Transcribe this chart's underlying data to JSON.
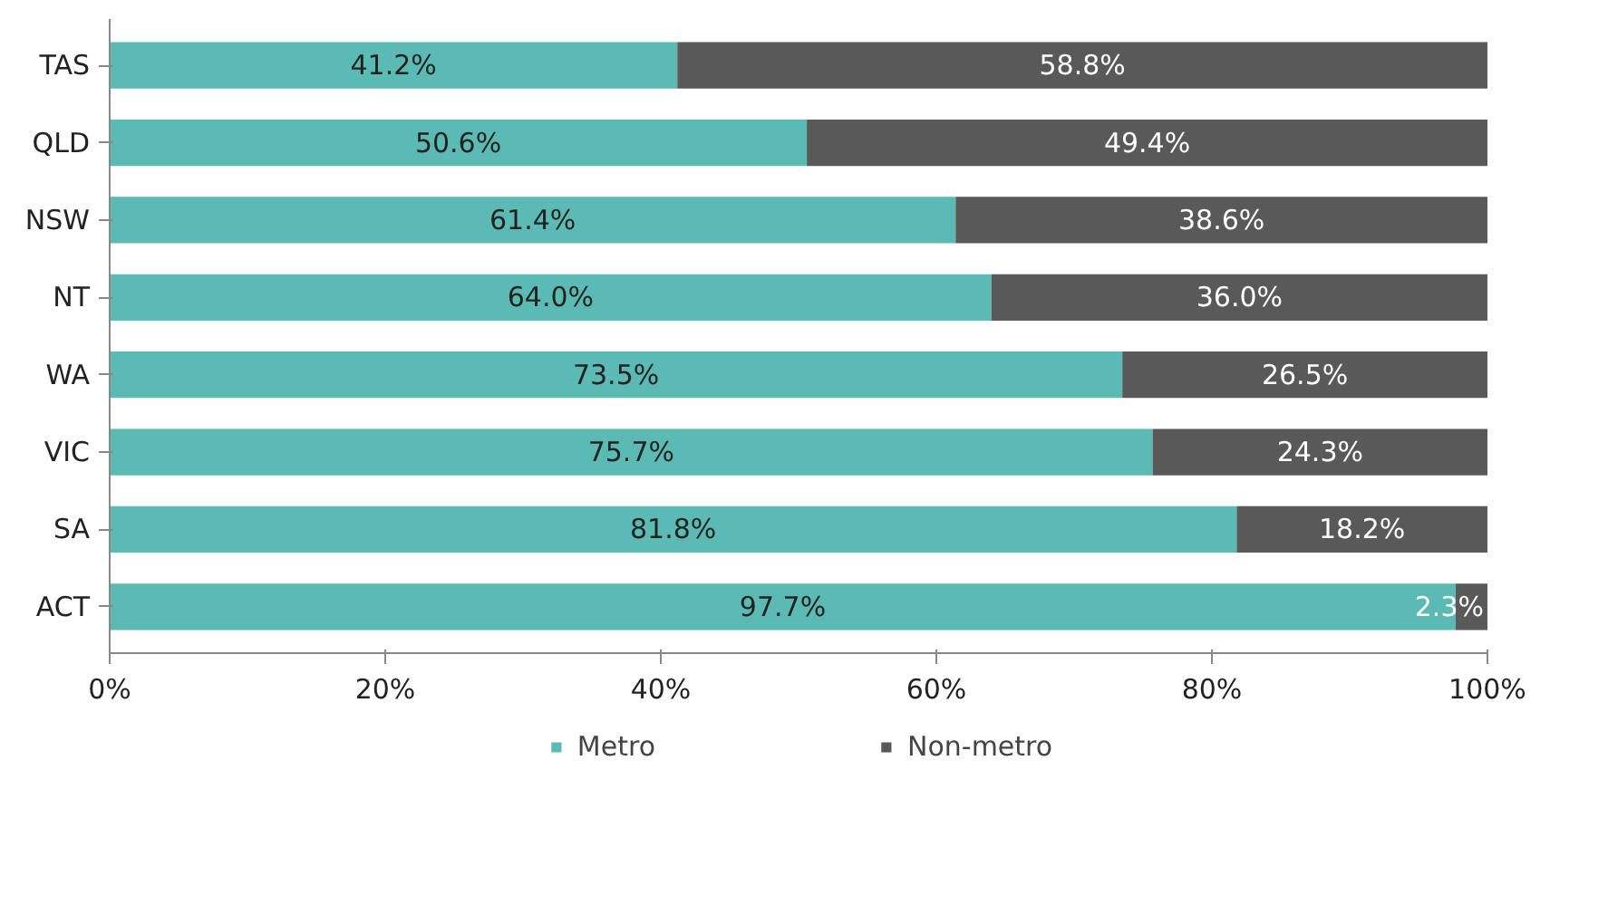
{
  "chart_data": {
    "type": "bar",
    "orientation": "horizontal",
    "stacked": true,
    "categories": [
      "TAS",
      "QLD",
      "NSW",
      "NT",
      "WA",
      "VIC",
      "SA",
      "ACT"
    ],
    "series": [
      {
        "name": "Metro",
        "color": "#5bbab3",
        "values": [
          41.2,
          50.6,
          61.4,
          64.0,
          73.5,
          75.7,
          81.8,
          97.7
        ],
        "value_labels": [
          "41.2%",
          "50.6%",
          "61.4%",
          "64.0%",
          "73.5%",
          "75.7%",
          "81.8%",
          "97.7%"
        ]
      },
      {
        "name": "Non-metro",
        "color": "#595959",
        "values": [
          58.8,
          49.4,
          38.6,
          36.0,
          26.5,
          24.3,
          18.2,
          2.3
        ],
        "value_labels": [
          "58.8%",
          "49.4%",
          "38.6%",
          "36.0%",
          "26.5%",
          "24.3%",
          "18.2%",
          "2.3%"
        ]
      }
    ],
    "xlim": [
      0,
      100
    ],
    "xticks": [
      {
        "value": 0,
        "label": "0%"
      },
      {
        "value": 20,
        "label": "20%"
      },
      {
        "value": 40,
        "label": "40%"
      },
      {
        "value": 60,
        "label": "60%"
      },
      {
        "value": 80,
        "label": "80%"
      },
      {
        "value": 100,
        "label": "100%"
      }
    ],
    "grid": false,
    "legend": "bottom"
  }
}
